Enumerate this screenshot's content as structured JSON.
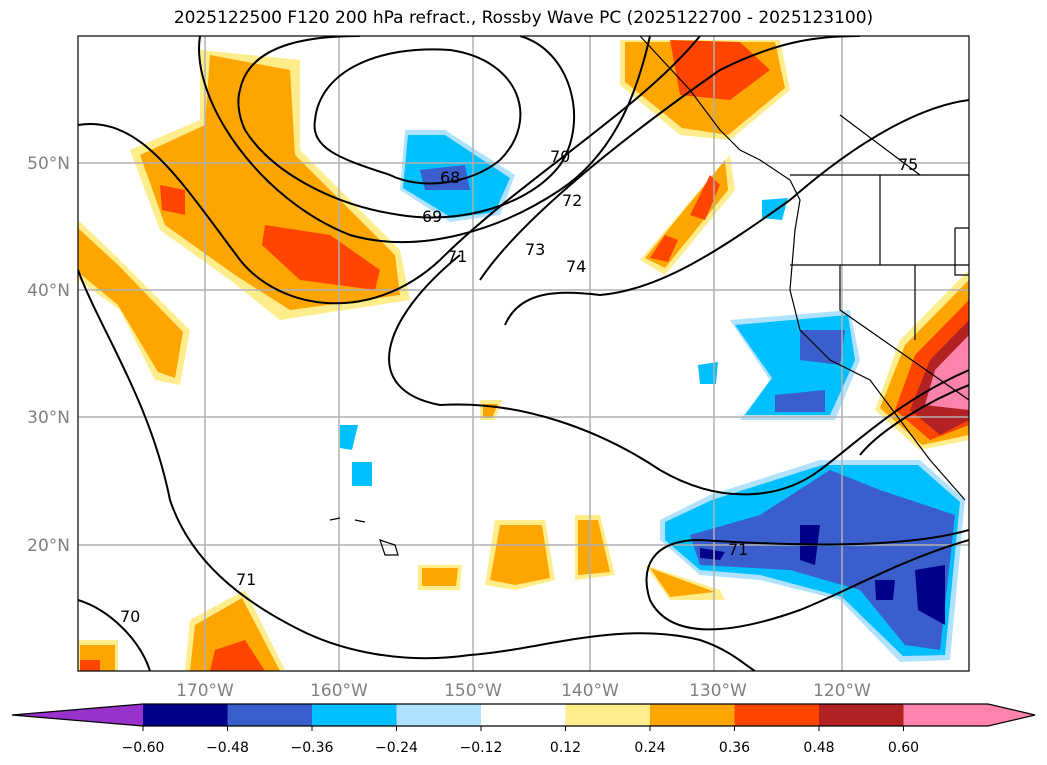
{
  "title": "2025122500 F120 200 hPa refract., Rossby Wave PC (2025122700 - 2025123100)",
  "lon_ticks": [
    "170°W",
    "160°W",
    "150°W",
    "140°W",
    "130°W",
    "120°W"
  ],
  "lat_ticks": [
    "50°N",
    "40°N",
    "30°N",
    "20°N"
  ],
  "contour_labels": [
    "68",
    "69",
    "70",
    "71",
    "72",
    "73",
    "74",
    "75",
    "71",
    "71",
    "70"
  ],
  "colorbar": {
    "ticks": [
      "−0.60",
      "−0.48",
      "−0.36",
      "−0.24",
      "−0.12",
      "0.12",
      "0.24",
      "0.36",
      "0.48",
      "0.60"
    ],
    "colors": [
      "#9932cc",
      "#00008b",
      "#3a5fcd",
      "#00bfff",
      "#b0e2ff",
      "#ffffff",
      "#ffec8b",
      "#ffa500",
      "#ff4500",
      "#b22222",
      "#ff83aa",
      "#ff83aa"
    ]
  }
}
